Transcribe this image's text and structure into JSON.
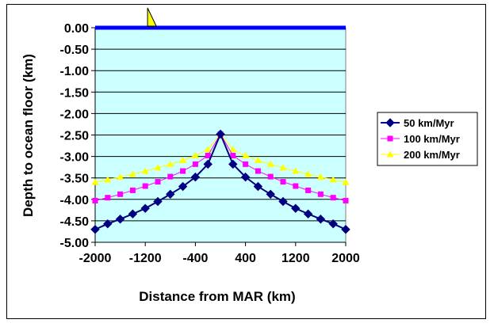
{
  "chart_data": {
    "type": "line",
    "xlabel": "Distance from MAR (km)",
    "ylabel": "Depth to ocean floor (km)",
    "xlim": [
      -2000,
      2000
    ],
    "ylim": [
      -5.0,
      0.0
    ],
    "grid": true,
    "legend_position": "right",
    "plot_background": "#ccffff",
    "x_ticks": [
      -2000,
      -1200,
      -400,
      400,
      1200,
      2000
    ],
    "x_tick_labels": [
      "-2000",
      "-1200",
      "-400",
      "400",
      "1200",
      "2000"
    ],
    "y_ticks": [
      0,
      -0.5,
      -1.0,
      -1.5,
      -2.0,
      -2.5,
      -3.0,
      -3.5,
      -4.0,
      -4.5,
      -5.0
    ],
    "y_tick_labels": [
      "0.00",
      "-0.50",
      "-1.00",
      "-1.50",
      "-2.00",
      "-2.50",
      "-3.00",
      "-3.50",
      "-4.00",
      "-4.50",
      "-5.00"
    ],
    "x": [
      -2000,
      -1800,
      -1600,
      -1400,
      -1200,
      -1000,
      -800,
      -600,
      -400,
      -200,
      0,
      200,
      400,
      600,
      800,
      1000,
      1200,
      1400,
      1600,
      1800,
      2000
    ],
    "series": [
      {
        "name": "50 km/Myr",
        "color": "#000080",
        "marker": "diamond",
        "values": [
          -4.7,
          -4.57,
          -4.46,
          -4.34,
          -4.21,
          -4.05,
          -3.88,
          -3.7,
          -3.48,
          -3.18,
          -2.48,
          -3.18,
          -3.48,
          -3.7,
          -3.88,
          -4.05,
          -4.21,
          -4.34,
          -4.46,
          -4.57,
          -4.7
        ]
      },
      {
        "name": "100 km/Myr",
        "color": "#ff00ff",
        "marker": "square",
        "values": [
          -4.03,
          -3.96,
          -3.88,
          -3.79,
          -3.69,
          -3.59,
          -3.47,
          -3.34,
          -3.18,
          -2.98,
          -2.48,
          -2.98,
          -3.18,
          -3.34,
          -3.47,
          -3.59,
          -3.69,
          -3.79,
          -3.88,
          -3.96,
          -4.03
        ]
      },
      {
        "name": "200 km/Myr",
        "color": "#ffff00",
        "marker": "triangle",
        "values": [
          -3.6,
          -3.54,
          -3.48,
          -3.41,
          -3.34,
          -3.26,
          -3.18,
          -3.09,
          -2.98,
          -2.84,
          -2.48,
          -2.84,
          -2.98,
          -3.09,
          -3.18,
          -3.26,
          -3.34,
          -3.41,
          -3.48,
          -3.54,
          -3.6
        ]
      }
    ],
    "surface_line": {
      "value": 0.0,
      "color": "#0000ff"
    },
    "boat_marker": {
      "x": -1100,
      "icon": "sailboat-icon",
      "color": "#ffff00"
    }
  }
}
